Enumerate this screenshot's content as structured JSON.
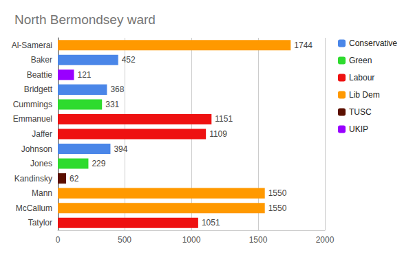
{
  "chart_data": {
    "type": "bar",
    "title": "North Bermondsey ward",
    "orientation": "horizontal",
    "categories": [
      "Al-Samerai",
      "Baker",
      "Beattie",
      "Bridgett",
      "Cummings",
      "Emmanuel",
      "Jaffer",
      "Johnson",
      "Jones",
      "Kandinsky",
      "Mann",
      "McCallum",
      "Tatylor"
    ],
    "series": [
      {
        "name": "Conservative",
        "color": "#4a86e8",
        "values": [
          null,
          452,
          null,
          368,
          null,
          null,
          null,
          394,
          null,
          null,
          null,
          null,
          null
        ]
      },
      {
        "name": "Green",
        "color": "#2edb2e",
        "values": [
          null,
          null,
          null,
          null,
          331,
          null,
          null,
          null,
          229,
          null,
          null,
          null,
          null
        ]
      },
      {
        "name": "Labour",
        "color": "#ee1111",
        "values": [
          null,
          null,
          null,
          null,
          null,
          1151,
          1109,
          null,
          null,
          null,
          null,
          null,
          1051
        ]
      },
      {
        "name": "Lib Dem",
        "color": "#ff9900",
        "values": [
          1744,
          null,
          null,
          null,
          null,
          null,
          null,
          null,
          null,
          null,
          1550,
          1550,
          null
        ]
      },
      {
        "name": "TUSC",
        "color": "#5b0f00",
        "values": [
          null,
          null,
          null,
          null,
          null,
          null,
          null,
          null,
          null,
          62,
          null,
          null,
          null
        ]
      },
      {
        "name": "UKIP",
        "color": "#9900ff",
        "values": [
          null,
          null,
          121,
          null,
          null,
          null,
          null,
          null,
          null,
          null,
          null,
          null,
          null
        ]
      }
    ],
    "xlim": [
      0,
      2000
    ],
    "xticks": [
      0,
      500,
      1000,
      1500,
      2000
    ],
    "grid": true,
    "legend": "right",
    "data_labels": true
  }
}
